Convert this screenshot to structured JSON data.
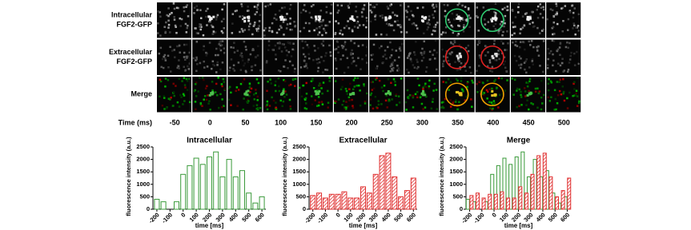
{
  "figure": {
    "row_labels": [
      [
        "Intracellular",
        "FGF2-GFP"
      ],
      [
        "Extracellular",
        "FGF2-GFP"
      ],
      [
        "Merge"
      ]
    ],
    "time_label": "Time (ms)",
    "times": [
      -50,
      0,
      50,
      100,
      150,
      200,
      250,
      300,
      350,
      400,
      450,
      500
    ]
  },
  "chart_data": [
    {
      "type": "bar",
      "title": "Intracellular",
      "xlabel": "time [ms]",
      "ylabel": "fluorescence intensity (a.u.)",
      "x": [
        -200,
        -150,
        -100,
        -50,
        0,
        50,
        100,
        150,
        200,
        250,
        300,
        350,
        400,
        450,
        500,
        550,
        600
      ],
      "series": [
        {
          "color": "#3a9a3a",
          "style": "outline",
          "values": [
            400,
            300,
            0,
            300,
            1400,
            1750,
            2050,
            1800,
            2100,
            2300,
            1300,
            2000,
            1300,
            1550,
            650,
            250,
            500
          ]
        }
      ],
      "xlim": [
        -230,
        630
      ],
      "ylim": [
        0,
        2500
      ],
      "xticks": [
        -200,
        -100,
        0,
        100,
        200,
        300,
        400,
        500,
        600
      ],
      "yticks": [
        0,
        500,
        1000,
        1500,
        2000,
        2500
      ]
    },
    {
      "type": "bar",
      "title": "Extracellular",
      "xlabel": "time [ms]",
      "ylabel": "fluorescence intensity (a.u.)",
      "x": [
        -200,
        -150,
        -100,
        -50,
        0,
        50,
        100,
        150,
        200,
        250,
        300,
        350,
        400,
        450,
        500,
        550,
        600
      ],
      "series": [
        {
          "color": "#e03030",
          "style": "hatched",
          "values": [
            550,
            650,
            450,
            600,
            600,
            700,
            450,
            450,
            900,
            650,
            1400,
            2150,
            2250,
            1300,
            500,
            750,
            1250
          ]
        }
      ],
      "xlim": [
        -230,
        630
      ],
      "ylim": [
        0,
        2500
      ],
      "xticks": [
        -200,
        -100,
        0,
        100,
        200,
        300,
        400,
        500,
        600
      ],
      "yticks": [
        0,
        500,
        1000,
        1500,
        2000,
        2500
      ]
    },
    {
      "type": "bar",
      "title": "Merge",
      "xlabel": "time [ms]",
      "ylabel": "fluorescence intensity (a.u.)",
      "x": [
        -200,
        -150,
        -100,
        -50,
        0,
        50,
        100,
        150,
        200,
        250,
        300,
        350,
        400,
        450,
        500,
        550,
        600
      ],
      "series": [
        {
          "color": "#3a9a3a",
          "style": "outline",
          "values": [
            400,
            300,
            0,
            300,
            1400,
            1750,
            2050,
            1800,
            2100,
            2300,
            1300,
            2000,
            1300,
            1550,
            650,
            250,
            500
          ]
        },
        {
          "color": "#e03030",
          "style": "hatched",
          "values": [
            550,
            650,
            450,
            600,
            600,
            700,
            450,
            450,
            900,
            650,
            1400,
            2150,
            2250,
            1300,
            500,
            750,
            1250
          ]
        }
      ],
      "xlim": [
        -230,
        630
      ],
      "ylim": [
        0,
        2500
      ],
      "xticks": [
        -200,
        -100,
        0,
        100,
        200,
        300,
        400,
        500,
        600
      ],
      "yticks": [
        0,
        500,
        1000,
        1500,
        2000,
        2500
      ]
    }
  ]
}
